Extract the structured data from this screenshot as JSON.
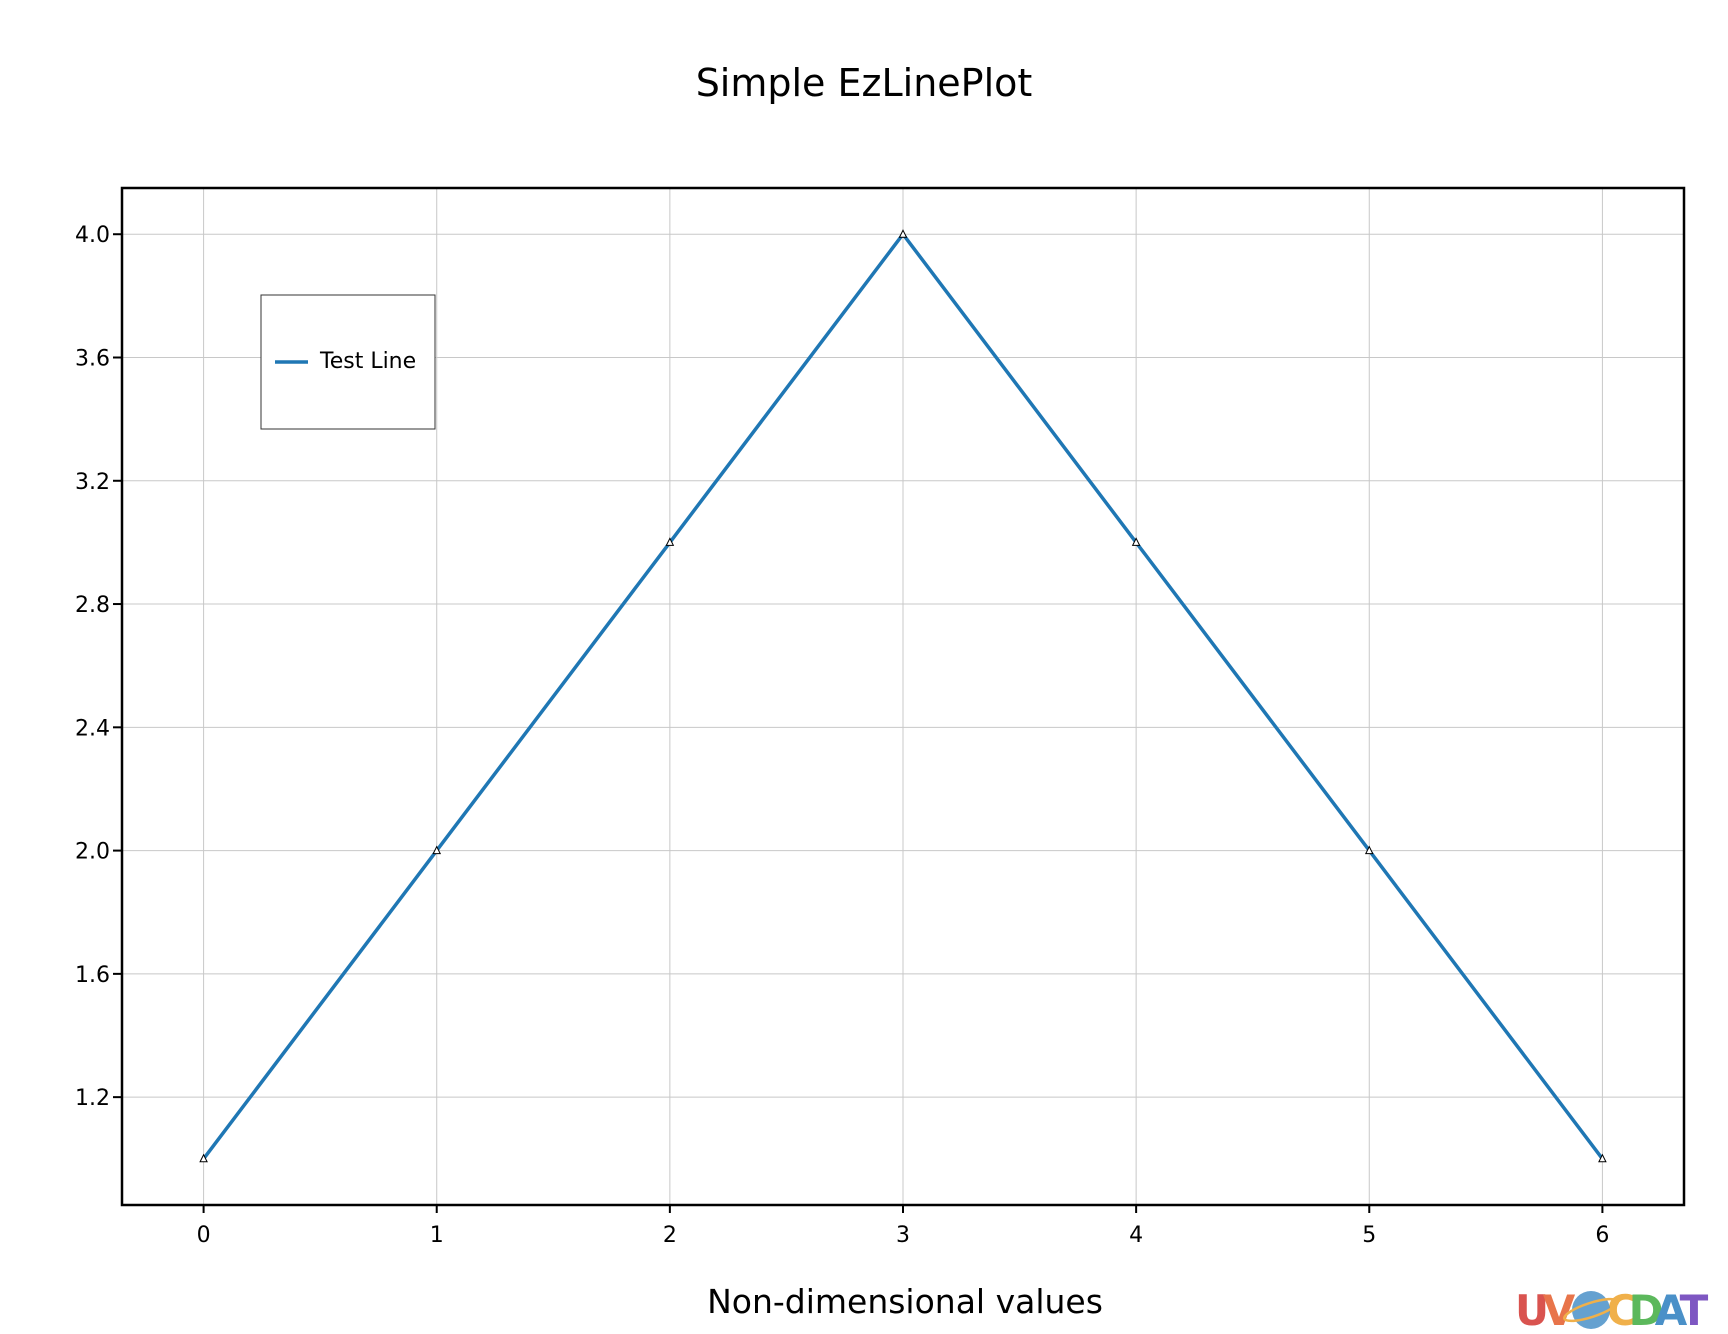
{
  "chart_data": {
    "type": "line",
    "title": "Simple EzLinePlot",
    "xlabel": "Non-dimensional values",
    "ylabel": "",
    "xlim": [
      -0.35,
      6.35
    ],
    "ylim": [
      0.85,
      4.15
    ],
    "xticks": [
      0,
      1,
      2,
      3,
      4,
      5,
      6
    ],
    "xtick_labels": [
      "0",
      "1",
      "2",
      "3",
      "4",
      "5",
      "6"
    ],
    "yticks": [
      1.2,
      1.6,
      2.0,
      2.4,
      2.8,
      3.2,
      3.6,
      4.0
    ],
    "ytick_labels": [
      "1.2",
      "1.6",
      "2.0",
      "2.4",
      "2.8",
      "3.2",
      "3.6",
      "4.0"
    ],
    "grid": true,
    "legend_position": "top-left",
    "series": [
      {
        "name": "Test Line",
        "color": "#1f77b4",
        "marker": "triangle",
        "x": [
          0,
          1,
          2,
          3,
          4,
          5,
          6
        ],
        "y": [
          1,
          2,
          3,
          4,
          3,
          2,
          1
        ]
      }
    ]
  },
  "logo": {
    "text": "UV-CDAT",
    "letters": [
      {
        "ch": "U",
        "color": "#d9534f"
      },
      {
        "ch": "V",
        "color": "#e8744a"
      },
      {
        "ch": "C",
        "color": "#f0b04a"
      },
      {
        "ch": "D",
        "color": "#5cb85c"
      },
      {
        "ch": "A",
        "color": "#4a90c8"
      },
      {
        "ch": "T",
        "color": "#7e57c2"
      }
    ],
    "globe_color": "#4a90c8"
  }
}
